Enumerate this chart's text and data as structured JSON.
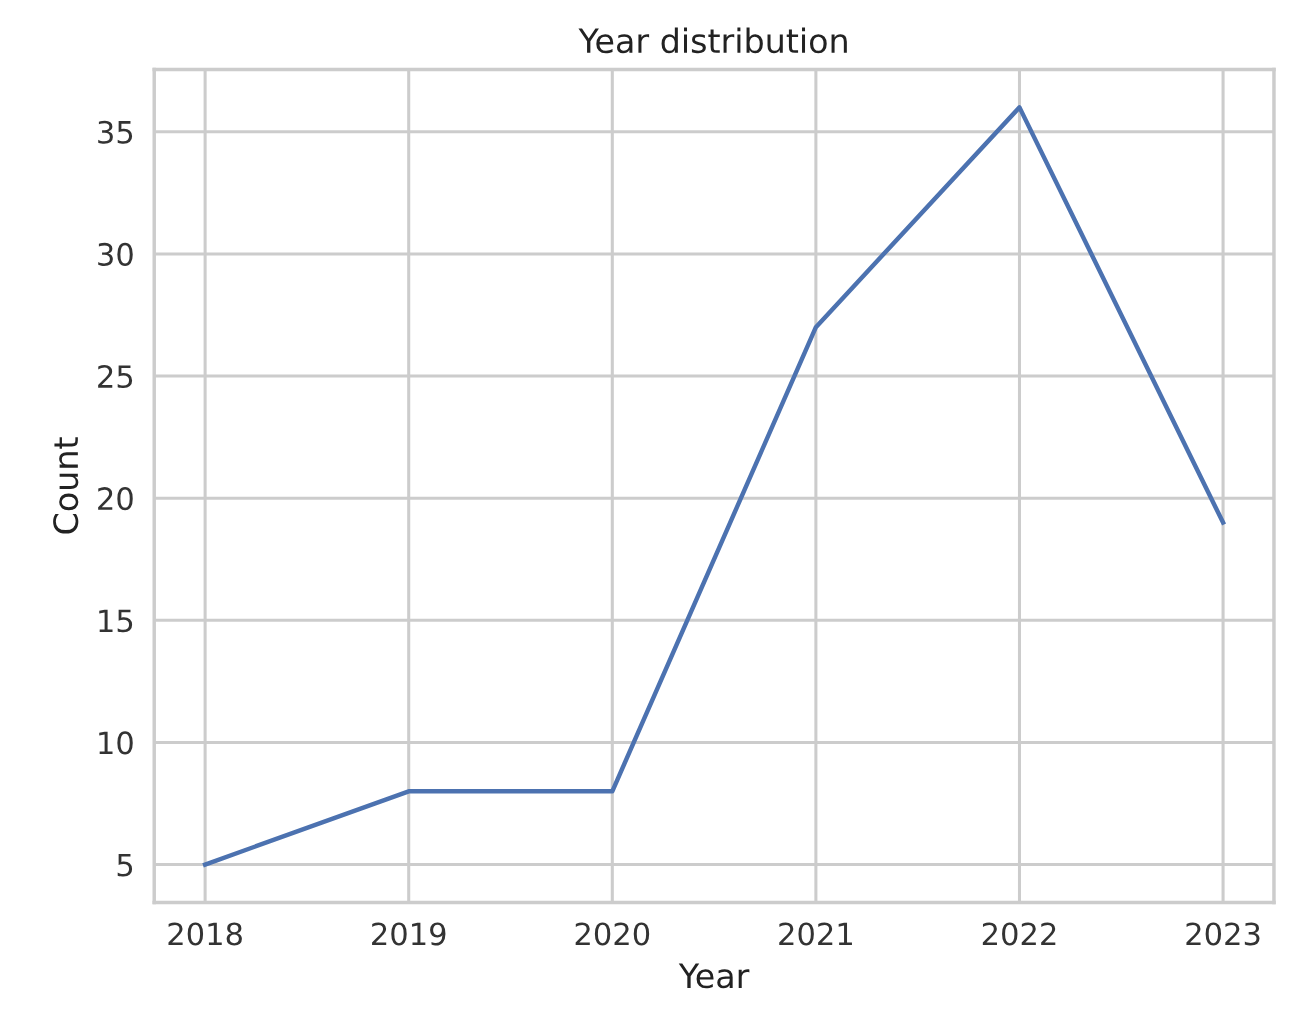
{
  "chart_data": {
    "type": "line",
    "title": "Year distribution",
    "xlabel": "Year",
    "ylabel": "Count",
    "x": [
      2018,
      2019,
      2020,
      2021,
      2022,
      2023
    ],
    "series": [
      {
        "color": "#4c72b0",
        "values": [
          5,
          8,
          8,
          27,
          36,
          19
        ]
      }
    ],
    "xlim": [
      2017.75,
      2023.25
    ],
    "xticks": [
      2018,
      2019,
      2020,
      2021,
      2022,
      2023
    ],
    "ylim": [
      3.45,
      37.55
    ],
    "yticks": [
      5,
      10,
      15,
      20,
      25,
      30,
      35
    ],
    "grid": true,
    "legend": false
  }
}
